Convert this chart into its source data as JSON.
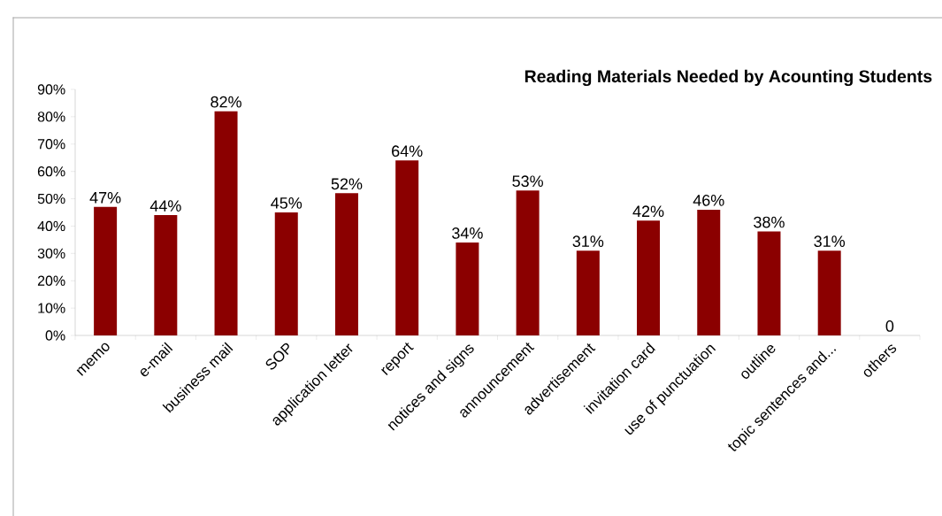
{
  "chart_data": {
    "type": "bar",
    "title": "Reading Materials Needed by Acounting Students",
    "categories": [
      "memo",
      "e-mail",
      "business mail",
      "SOP",
      "application letter",
      "report",
      "notices and signs",
      "announcement",
      "advertisement",
      "invitation card",
      "use of punctuation",
      "outline",
      "topic sentences and...",
      "others"
    ],
    "values": [
      47,
      44,
      82,
      45,
      52,
      64,
      34,
      53,
      31,
      42,
      46,
      38,
      31,
      0
    ],
    "value_labels": [
      "47%",
      "44%",
      "82%",
      "45%",
      "52%",
      "64%",
      "34%",
      "53%",
      "31%",
      "42%",
      "46%",
      "38%",
      "31%",
      "0"
    ],
    "color": "#8b0000",
    "ylim": [
      0,
      90
    ],
    "yticks": [
      {
        "value": 0,
        "label": "0%"
      },
      {
        "value": 10,
        "label": "10%"
      },
      {
        "value": 20,
        "label": "20%"
      },
      {
        "value": 30,
        "label": "30%"
      },
      {
        "value": 40,
        "label": "40%"
      },
      {
        "value": 50,
        "label": "50%"
      },
      {
        "value": 60,
        "label": "60%"
      },
      {
        "value": 70,
        "label": "70%"
      },
      {
        "value": 80,
        "label": "80%"
      },
      {
        "value": 90,
        "label": "90%"
      }
    ]
  }
}
